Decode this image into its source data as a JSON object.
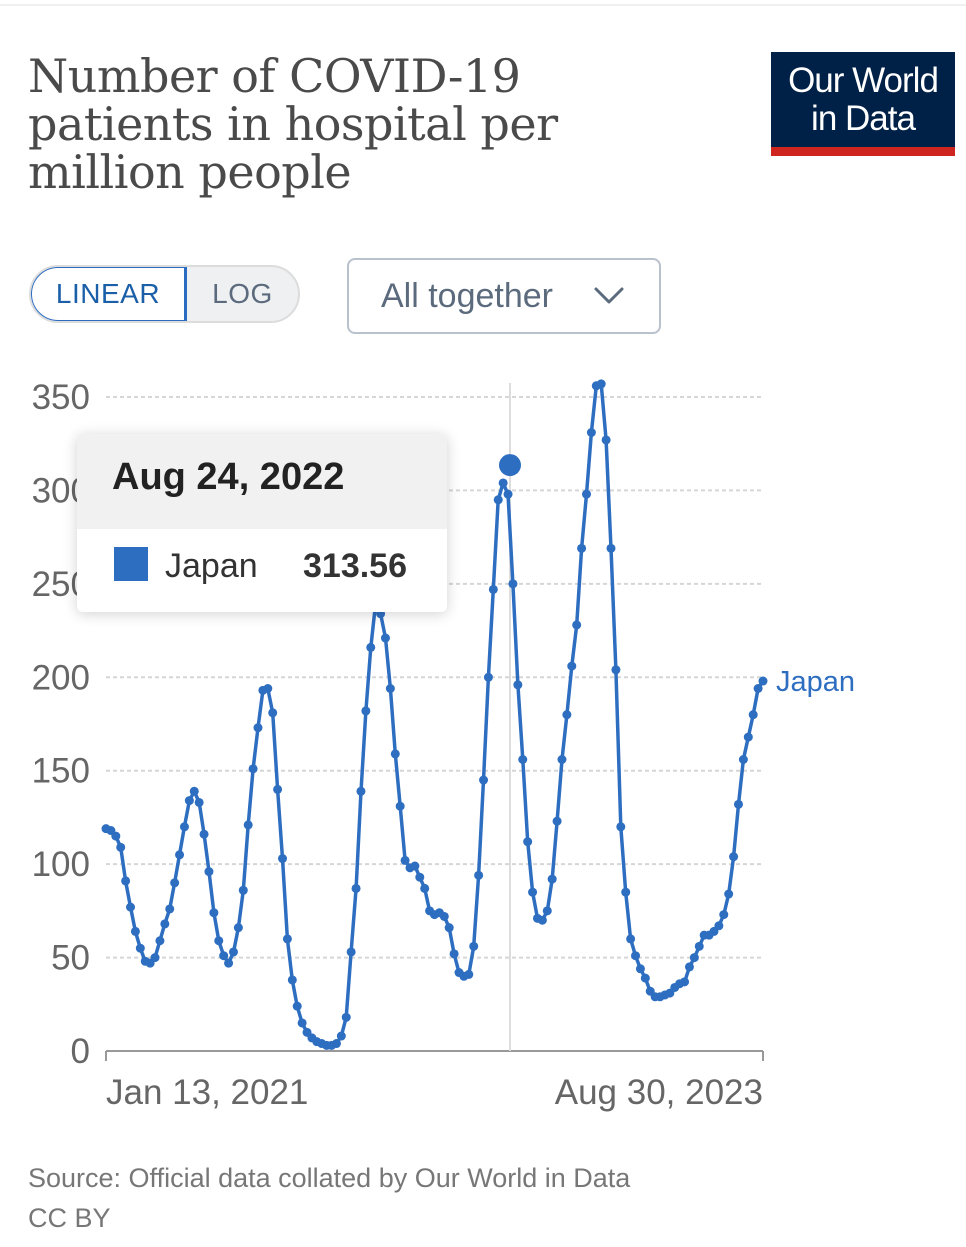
{
  "header": {
    "title": "Number of COVID-19 patients in hospital per million people",
    "logo_line1": "Our World",
    "logo_line2": "in Data"
  },
  "controls": {
    "linear_label": "LINEAR",
    "log_label": "LOG",
    "active_scale": "linear",
    "dropdown_label": "All together"
  },
  "tooltip": {
    "date": "Aug 24, 2022",
    "series": "Japan",
    "value": "313.56"
  },
  "footer": {
    "source": "Source: Official data collated by Our World in Data",
    "license": "CC BY"
  },
  "colors": {
    "series": "#2e6ec1",
    "grid": "#d6d6d6",
    "logo_bg": "#002147",
    "logo_bar": "#ce261e"
  },
  "icons": {
    "dropdown": "chevron-down-icon"
  },
  "chart_data": {
    "type": "line",
    "ylim": [
      0,
      350
    ],
    "yticks": [
      0,
      50,
      100,
      150,
      200,
      250,
      300,
      350
    ],
    "x_range": [
      "Jan 13, 2021",
      "Aug 30, 2023"
    ],
    "x_tick_labels": [
      "Jan 13, 2021",
      "Aug 30, 2023"
    ],
    "grid": true,
    "highlighted_point": {
      "x": "Aug 24, 2022",
      "y": 313.56
    },
    "series": [
      {
        "name": "Japan",
        "values": [
          119,
          118,
          115,
          109,
          91,
          77,
          64,
          55,
          48,
          47,
          50,
          59,
          68,
          76,
          90,
          105,
          120,
          134,
          139,
          133,
          116,
          96,
          74,
          59,
          51,
          47,
          53,
          66,
          86,
          121,
          151,
          173,
          193,
          194,
          181,
          140,
          103,
          60,
          38,
          24,
          15,
          10,
          7,
          5,
          4,
          3,
          3,
          4,
          8,
          18,
          53,
          87,
          139,
          182,
          216,
          240,
          234,
          221,
          194,
          159,
          131,
          102,
          98,
          99,
          93,
          87,
          75,
          73,
          74,
          72,
          66,
          52,
          42,
          40,
          41,
          56,
          94,
          145,
          200,
          247,
          295,
          304,
          298,
          250,
          196,
          156,
          112,
          85,
          71,
          70,
          75,
          92,
          123,
          156,
          180,
          206,
          228,
          269,
          298,
          331,
          356,
          357,
          327,
          269,
          204,
          120,
          85,
          60,
          51,
          44,
          39,
          32,
          29,
          29,
          30,
          31,
          34,
          36,
          37,
          45,
          50,
          56,
          62,
          62,
          64,
          67,
          73,
          84,
          104,
          132,
          156,
          168,
          180,
          194,
          198
        ]
      }
    ]
  }
}
